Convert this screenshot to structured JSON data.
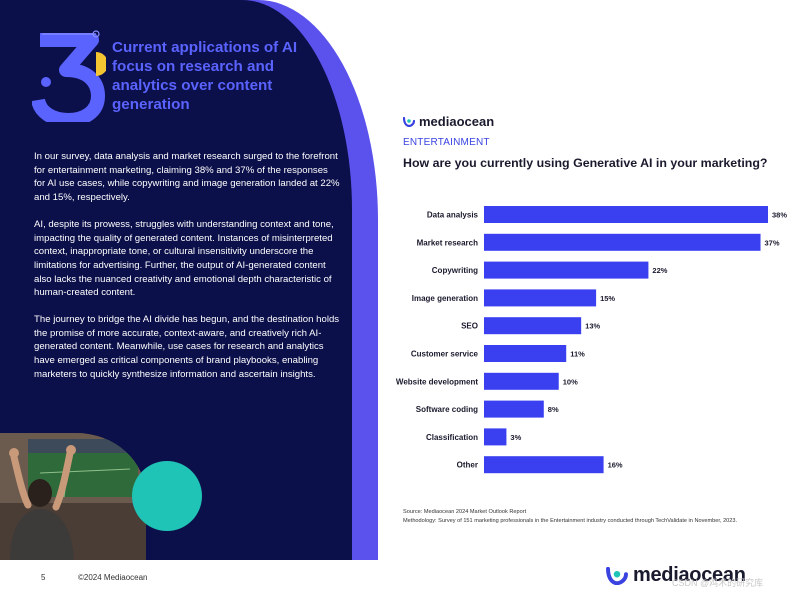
{
  "left_panel": {
    "section_number": "3",
    "headline": "Current applications of AI focus on research and analytics over content generation",
    "paragraphs": [
      "In our survey, data analysis and market research surged to the forefront for entertainment marketing, claiming 38% and 37% of the responses for AI use cases, while copywriting and image generation landed at 22% and 15%, respectively.",
      "AI, despite its prowess, struggles with understanding context and tone, impacting the quality of generated content. Instances of misinterpreted context, inappropriate tone, or cultural insensitivity underscore the limitations for advertising. Further, the output of AI-generated content also lacks the nuanced creativity and emotional depth characteristic of human-created content.",
      "The journey to bridge the AI divide has begun, and the destination holds the promise of more accurate, context-aware, and creatively rich AI-generated content. Meanwhile, use cases for research and analytics have emerged as critical components of brand playbooks, enabling marketers to quickly synthesize information and ascertain insights."
    ]
  },
  "right_panel": {
    "brand": "mediaocean",
    "section_label": "ENTERTAINMENT",
    "question": "How are you currently using Generative AI in your marketing?",
    "source": "Source: Mediaocean 2024 Market Outlook Report",
    "methodology": "Methodology: Survey of 151 marketing professionals in the Entertainment industry conducted through TechValidate in November, 2023."
  },
  "chart_data": {
    "type": "bar",
    "orientation": "horizontal",
    "title": "How are you currently using Generative AI in your marketing?",
    "categories": [
      "Data analysis",
      "Market research",
      "Copywriting",
      "Image generation",
      "SEO",
      "Customer service",
      "Website development",
      "Software coding",
      "Classification",
      "Other"
    ],
    "values": [
      38,
      37,
      22,
      15,
      13,
      11,
      10,
      8,
      3,
      16
    ],
    "value_labels": [
      "38%",
      "37%",
      "22%",
      "15%",
      "13%",
      "11%",
      "10%",
      "8%",
      "3%",
      "16%"
    ],
    "xlim": [
      0,
      38
    ],
    "unit": "%",
    "grid": false,
    "bar_color": "#3a3ff0"
  },
  "footer": {
    "page_number": "5",
    "copyright": "©2024 Mediaocean",
    "brand": "mediaocean",
    "watermark": "CSDN @鸡术的研究库"
  },
  "colors": {
    "navy": "#0b0f4a",
    "accent_blue": "#5b63ff",
    "bar_blue": "#3a3ff0",
    "teal": "#1fc4b6",
    "yellow": "#f5c431"
  }
}
